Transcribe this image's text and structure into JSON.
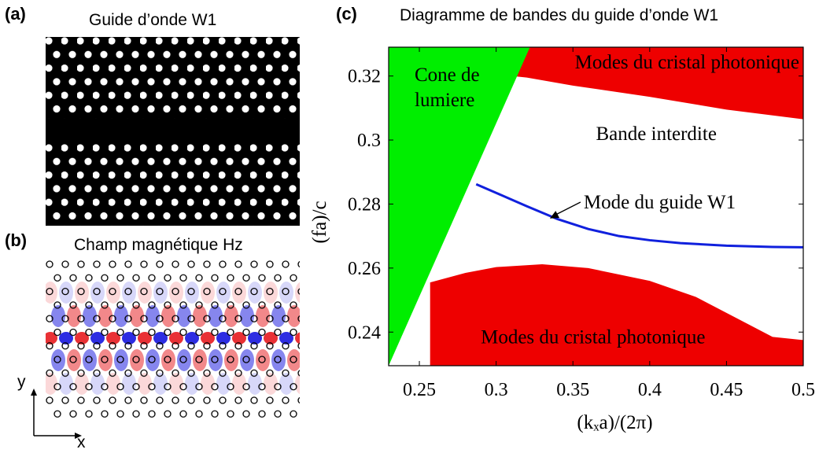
{
  "panel_a": {
    "letter": "(a)",
    "title": "Guide d’onde W1"
  },
  "panel_b": {
    "letter": "(b)",
    "title": "Champ magnétique Hz",
    "axis_y": "y",
    "axis_x": "x"
  },
  "panel_c": {
    "letter": "(c)",
    "title": "Diagramme de bandes du guide d’onde W1"
  },
  "colors": {
    "light_cone": "#00ee00",
    "crystal_modes": "#ee0000",
    "guide_mode": "#1020dd",
    "field_red": "#e8262a",
    "field_blue": "#2222e0"
  },
  "chart_data": {
    "type": "area",
    "xlabel": "(kₓa)/(2π)",
    "ylabel": "(fa)/c",
    "xlim": [
      0.23,
      0.5
    ],
    "ylim": [
      0.2295,
      0.329
    ],
    "xticks": [
      0.25,
      0.3,
      0.35,
      0.4,
      0.45,
      0.5
    ],
    "xtick_labels": [
      "0.25",
      "0.3",
      "0.35",
      "0.4",
      "0.45",
      "0.5"
    ],
    "yticks": [
      0.24,
      0.26,
      0.28,
      0.3,
      0.32
    ],
    "ytick_labels": [
      "0.24",
      "0.26",
      "0.28",
      "0.3",
      "0.32"
    ],
    "grid": false,
    "regions": [
      {
        "name": "light_cone",
        "label": "Cone de\nlumiere",
        "boundary": [
          [
            0.23,
            0.2295
          ],
          [
            0.322,
            0.329
          ]
        ]
      },
      {
        "name": "upper_crystal_modes",
        "label": "Modes du cristal photonique",
        "lower_edge": [
          [
            0.3,
            0.3205
          ],
          [
            0.32,
            0.3195
          ],
          [
            0.35,
            0.317
          ],
          [
            0.4,
            0.3135
          ],
          [
            0.45,
            0.3095
          ],
          [
            0.5,
            0.3065
          ]
        ]
      },
      {
        "name": "lower_crystal_modes",
        "label": "Modes du cristal photonique",
        "upper_edge": [
          [
            0.257,
            0.2555
          ],
          [
            0.28,
            0.2585
          ],
          [
            0.3,
            0.2603
          ],
          [
            0.33,
            0.2612
          ],
          [
            0.36,
            0.26
          ],
          [
            0.4,
            0.256
          ],
          [
            0.43,
            0.251
          ],
          [
            0.46,
            0.2435
          ],
          [
            0.48,
            0.2385
          ],
          [
            0.5,
            0.2375
          ]
        ]
      },
      {
        "name": "band_gap",
        "label": "Bande interdite"
      }
    ],
    "series": [
      {
        "name": "Mode du guide W1",
        "x": [
          0.287,
          0.3,
          0.32,
          0.34,
          0.36,
          0.38,
          0.4,
          0.42,
          0.45,
          0.48,
          0.5
        ],
        "y": [
          0.2862,
          0.2835,
          0.2793,
          0.2753,
          0.2722,
          0.27,
          0.2687,
          0.2678,
          0.267,
          0.2666,
          0.2665
        ]
      }
    ],
    "annotations": [
      {
        "text": "Mode du guide W1",
        "arrow_to": [
          0.335,
          0.2755
        ]
      }
    ]
  }
}
